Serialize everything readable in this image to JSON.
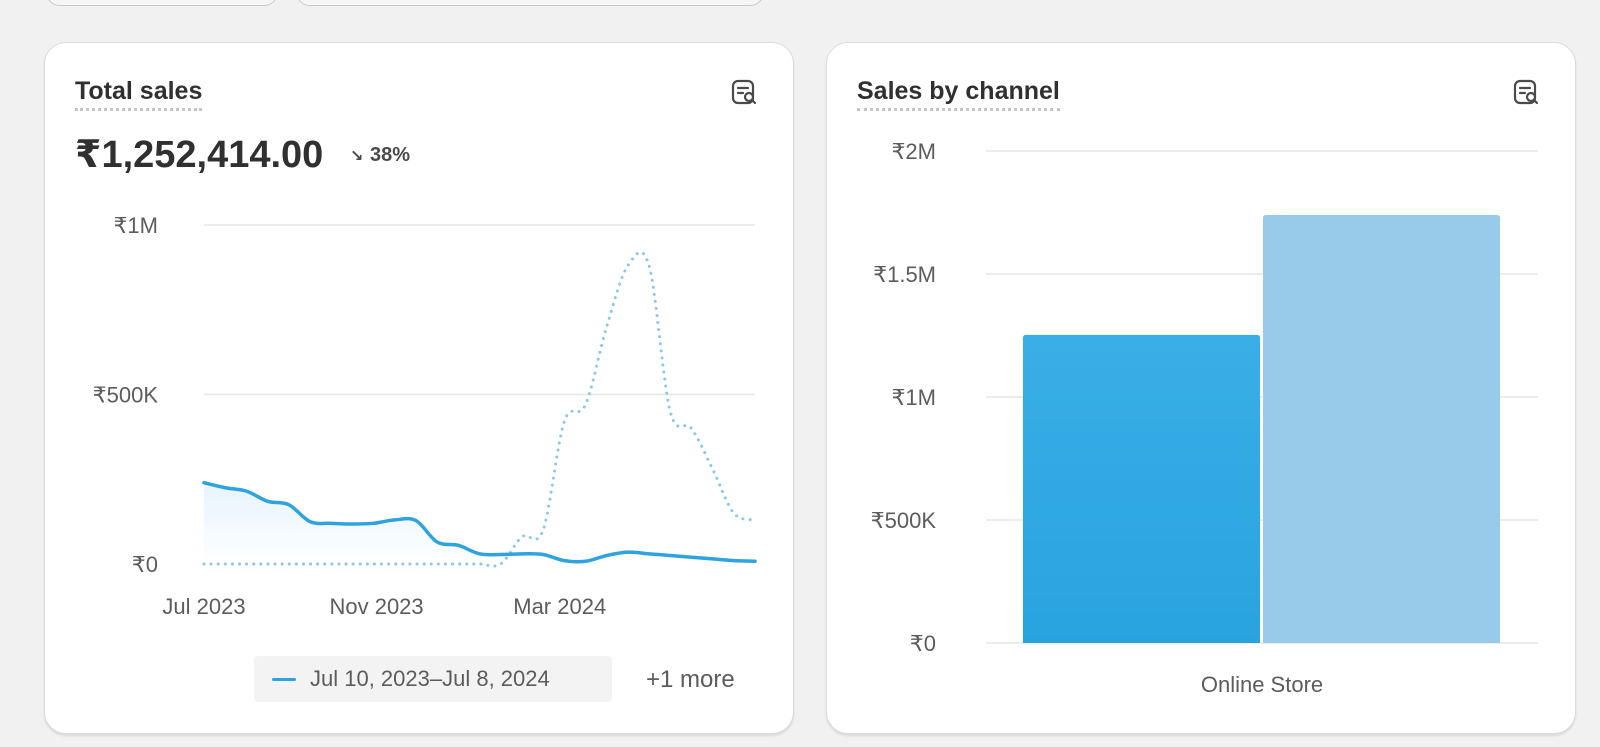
{
  "cards": {
    "total_sales": {
      "title": "Total sales",
      "value": "₹1,252,414.00",
      "change_icon": "arrow-down-right-icon",
      "change_pct": "38%",
      "legend_label": "Jul 10, 2023–Jul 8, 2024",
      "more_label": "+1 more"
    },
    "sales_by_channel": {
      "title": "Sales by channel"
    }
  },
  "icons": {
    "explore": "chart-explore-icon"
  },
  "colors": {
    "current_series": "#2ea3de",
    "comparison_series": "#8cc7e9",
    "bar_current": "#29a3df",
    "bar_comparison": "#98cbea",
    "gridline": "#e6e6e6"
  },
  "chart_data": [
    {
      "type": "line",
      "title": "Total sales",
      "y_ticks": [
        "₹1M",
        "₹500K",
        "₹0"
      ],
      "y_tick_values": [
        1000000,
        500000,
        0
      ],
      "x_ticks": [
        "Jul 2023",
        "Nov 2023",
        "Mar 2024"
      ],
      "ylim": [
        0,
        1000000
      ],
      "grid": true,
      "x": [
        "2023-07-10",
        "2023-07-24",
        "2023-08-07",
        "2023-08-21",
        "2023-09-04",
        "2023-09-18",
        "2023-10-02",
        "2023-10-16",
        "2023-10-30",
        "2023-11-13",
        "2023-11-27",
        "2023-12-11",
        "2023-12-25",
        "2024-01-08",
        "2024-01-22",
        "2024-02-05",
        "2024-02-19",
        "2024-03-04",
        "2024-03-18",
        "2024-04-01",
        "2024-04-15",
        "2024-04-29",
        "2024-05-13",
        "2024-05-27",
        "2024-06-10",
        "2024-06-24",
        "2024-07-08"
      ],
      "series": [
        {
          "name": "Jul 10, 2023–Jul 8, 2024",
          "style": "solid",
          "values": [
            240000,
            225000,
            215000,
            185000,
            175000,
            125000,
            120000,
            118000,
            120000,
            130000,
            128000,
            65000,
            55000,
            30000,
            28000,
            30000,
            28000,
            10000,
            8000,
            25000,
            35000,
            30000,
            25000,
            20000,
            15000,
            10000,
            8000
          ]
        },
        {
          "style": "dotted",
          "values": [
            0,
            0,
            0,
            0,
            0,
            0,
            0,
            0,
            0,
            0,
            0,
            0,
            0,
            0,
            0,
            80000,
            100000,
            420000,
            470000,
            700000,
            880000,
            880000,
            450000,
            400000,
            280000,
            150000,
            130000
          ]
        }
      ]
    },
    {
      "type": "bar",
      "title": "Sales by channel",
      "categories": [
        "Online Store"
      ],
      "y_ticks": [
        "₹2M",
        "₹1.5M",
        "₹1M",
        "₹500K",
        "₹0"
      ],
      "y_tick_values": [
        2000000,
        1500000,
        1000000,
        500000,
        0
      ],
      "ylim": [
        0,
        2000000
      ],
      "grid": true,
      "series": [
        {
          "values": [
            1252414
          ]
        },
        {
          "values": [
            1740000
          ]
        }
      ]
    }
  ]
}
